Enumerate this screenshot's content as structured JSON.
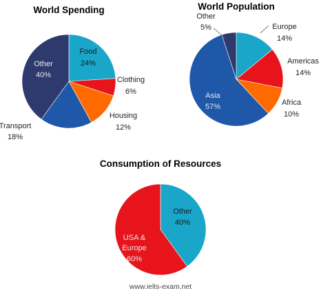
{
  "chart_data": [
    {
      "type": "pie",
      "title": "World Spending",
      "slices": [
        {
          "label": "Food",
          "value": 24,
          "value_label": "24%",
          "color": "#1aa6c8"
        },
        {
          "label": "Clothing",
          "value": 6,
          "value_label": "6%",
          "color": "#e8141c"
        },
        {
          "label": "Housing",
          "value": 12,
          "value_label": "12%",
          "color": "#ff6a00"
        },
        {
          "label": "Transport",
          "value": 18,
          "value_label": "18%",
          "color": "#1f58a8"
        },
        {
          "label": "Other",
          "value": 40,
          "value_label": "40%",
          "color": "#2e3a6e"
        }
      ]
    },
    {
      "type": "pie",
      "title": "World Population",
      "slices": [
        {
          "label": "Europe",
          "value": 14,
          "value_label": "14%",
          "color": "#1aa6c8"
        },
        {
          "label": "Americas",
          "value": 14,
          "value_label": "14%",
          "color": "#e8141c"
        },
        {
          "label": "Africa",
          "value": 10,
          "value_label": "10%",
          "color": "#ff6a00"
        },
        {
          "label": "Asia",
          "value": 57,
          "value_label": "57%",
          "color": "#1f58a8"
        },
        {
          "label": "Other",
          "value": 5,
          "value_label": "5%",
          "color": "#2e3a6e"
        }
      ]
    },
    {
      "type": "pie",
      "title": "Consumption of Resources",
      "slices": [
        {
          "label": "Other",
          "value": 40,
          "value_label": "40%",
          "color": "#1aa6c8"
        },
        {
          "label": "USA & Europe",
          "value": 60,
          "value_label": "60%",
          "color": "#e8141c"
        }
      ]
    }
  ],
  "watermark": "www.ielts-exam.net"
}
